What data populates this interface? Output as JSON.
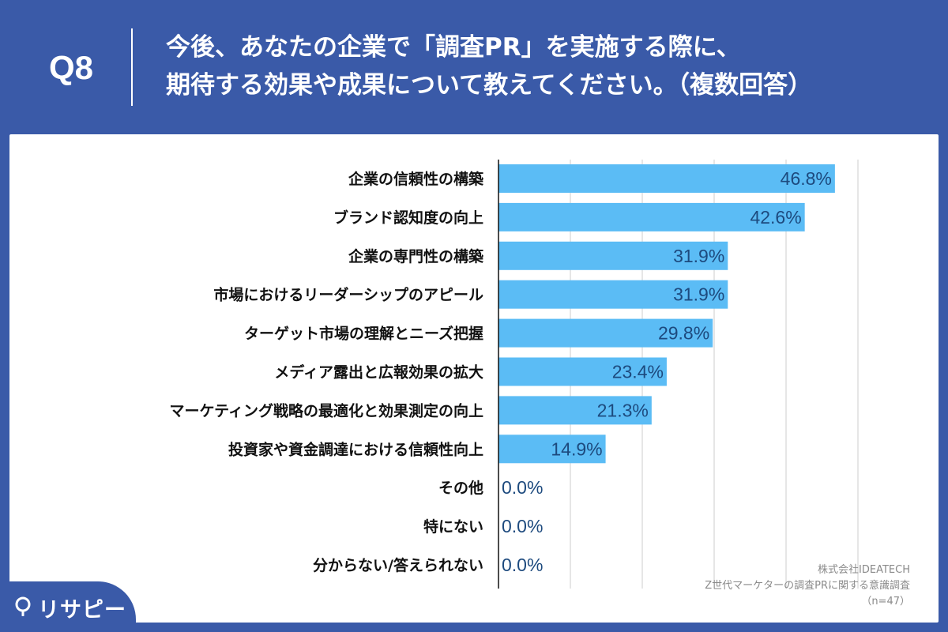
{
  "header": {
    "q_number": "Q8",
    "title_line1": "今後、あなたの企業で「調査PR」を実施する際に、",
    "title_line2": "期待する効果や成果について教えてください。（複数回答）"
  },
  "chart_data": {
    "type": "bar",
    "orientation": "horizontal",
    "categories": [
      "企業の信頼性の構築",
      "ブランド認知度の向上",
      "企業の専門性の構築",
      "市場におけるリーダーシップのアピール",
      "ターゲット市場の理解とニーズ把握",
      "メディア露出と広報効果の拡大",
      "マーケティング戦略の最適化と効果測定の向上",
      "投資家や資金調達における信頼性向上",
      "その他",
      "特にない",
      "分からない/答えられない"
    ],
    "values": [
      46.8,
      42.6,
      31.9,
      31.9,
      29.8,
      23.4,
      21.3,
      14.9,
      0.0,
      0.0,
      0.0
    ],
    "value_labels": [
      "46.8%",
      "42.6%",
      "31.9%",
      "31.9%",
      "29.8%",
      "23.4%",
      "21.3%",
      "14.9%",
      "0.0%",
      "0.0%",
      "0.0%"
    ],
    "xlim": [
      0,
      50
    ],
    "grid": true,
    "bar_color": "#5bbcf5",
    "value_label_color": "#1d4a7e"
  },
  "source": {
    "company": "株式会社IDEATECH",
    "survey": "Z世代マーケターの調査PRに関する意識調査",
    "sample": "（n=47）"
  },
  "logo": {
    "text": "リサピー",
    "icon": "map-pin-icon"
  },
  "colors": {
    "background": "#3a5aa8",
    "panel": "#ffffff"
  }
}
